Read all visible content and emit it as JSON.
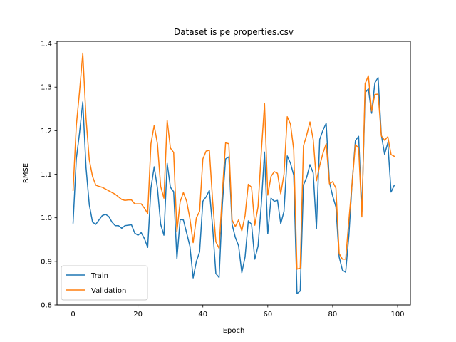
{
  "chart_data": {
    "type": "line",
    "title": "Dataset is pe properties.csv",
    "xlabel": "Epoch",
    "ylabel": "RMSE",
    "xlim": [
      -4.95,
      103.95
    ],
    "ylim": [
      0.8,
      1.405
    ],
    "xticks": [
      0,
      20,
      40,
      60,
      80,
      100
    ],
    "xtick_labels": [
      "0",
      "20",
      "40",
      "60",
      "80",
      "100"
    ],
    "yticks": [
      0.8,
      0.9,
      1.0,
      1.1,
      1.2,
      1.3,
      1.4
    ],
    "ytick_labels": [
      "0.8",
      "0.9",
      "1.0",
      "1.1",
      "1.2",
      "1.3",
      "1.4"
    ],
    "grid": false,
    "legend_position": "lower-left",
    "series": [
      {
        "name": "Train",
        "color": "#1f77b4",
        "x": [
          0,
          1,
          2,
          3,
          4,
          5,
          6,
          7,
          8,
          9,
          10,
          11,
          12,
          13,
          14,
          15,
          16,
          17,
          18,
          19,
          20,
          21,
          22,
          23,
          24,
          25,
          26,
          27,
          28,
          29,
          30,
          31,
          32,
          33,
          34,
          35,
          36,
          37,
          38,
          39,
          40,
          41,
          42,
          43,
          44,
          45,
          46,
          47,
          48,
          49,
          50,
          51,
          52,
          53,
          54,
          55,
          56,
          57,
          58,
          59,
          60,
          61,
          62,
          63,
          64,
          65,
          66,
          67,
          68,
          69,
          70,
          71,
          72,
          73,
          74,
          75,
          76,
          77,
          78,
          79,
          80,
          81,
          82,
          83,
          84,
          85,
          86,
          87,
          88,
          89,
          90,
          91,
          92,
          93,
          94,
          95,
          96,
          97,
          98,
          99
        ],
        "values": [
          0.988,
          1.135,
          1.195,
          1.266,
          1.115,
          1.03,
          0.99,
          0.985,
          0.995,
          1.005,
          1.008,
          1.003,
          0.99,
          0.982,
          0.982,
          0.976,
          0.982,
          0.983,
          0.984,
          0.965,
          0.96,
          0.966,
          0.952,
          0.932,
          1.068,
          1.117,
          1.068,
          0.985,
          0.96,
          1.125,
          1.07,
          1.06,
          0.906,
          0.996,
          0.995,
          0.965,
          0.935,
          0.862,
          0.9,
          0.922,
          1.038,
          1.048,
          1.063,
          0.98,
          0.872,
          0.863,
          1.03,
          1.135,
          1.14,
          0.985,
          0.955,
          0.936,
          0.874,
          0.91,
          0.993,
          0.985,
          0.905,
          0.935,
          1.03,
          1.151,
          0.963,
          1.045,
          1.038,
          1.04,
          0.986,
          1.015,
          1.142,
          1.125,
          1.098,
          0.826,
          0.832,
          1.075,
          1.093,
          1.122,
          1.103,
          0.975,
          1.18,
          1.201,
          1.217,
          1.082,
          1.05,
          1.025,
          0.91,
          0.88,
          0.875,
          0.96,
          1.082,
          1.177,
          1.187,
          1.013,
          1.287,
          1.296,
          1.24,
          1.31,
          1.322,
          1.19,
          1.146,
          1.172,
          1.059,
          1.075
        ]
      },
      {
        "name": "Validation",
        "color": "#ff7f0e",
        "x": [
          0,
          1,
          2,
          3,
          4,
          5,
          6,
          7,
          8,
          9,
          10,
          11,
          12,
          13,
          14,
          15,
          16,
          17,
          18,
          19,
          20,
          21,
          22,
          23,
          24,
          25,
          26,
          27,
          28,
          29,
          30,
          31,
          32,
          33,
          34,
          35,
          36,
          37,
          38,
          39,
          40,
          41,
          42,
          43,
          44,
          45,
          46,
          47,
          48,
          49,
          50,
          51,
          52,
          53,
          54,
          55,
          56,
          57,
          58,
          59,
          60,
          61,
          62,
          63,
          64,
          65,
          66,
          67,
          68,
          69,
          70,
          71,
          72,
          73,
          74,
          75,
          76,
          77,
          78,
          79,
          80,
          81,
          82,
          83,
          84,
          85,
          86,
          87,
          88,
          89,
          90,
          91,
          92,
          93,
          94,
          95,
          96,
          97,
          98,
          99
        ],
        "values": [
          1.063,
          1.212,
          1.29,
          1.378,
          1.228,
          1.133,
          1.095,
          1.075,
          1.072,
          1.07,
          1.066,
          1.062,
          1.058,
          1.054,
          1.048,
          1.042,
          1.04,
          1.041,
          1.041,
          1.032,
          1.032,
          1.032,
          1.022,
          1.01,
          1.17,
          1.212,
          1.17,
          1.072,
          1.045,
          1.224,
          1.16,
          1.15,
          0.968,
          1.037,
          1.058,
          1.038,
          0.998,
          0.943,
          1.0,
          1.015,
          1.135,
          1.153,
          1.155,
          1.04,
          0.945,
          0.93,
          1.058,
          1.172,
          1.17,
          0.995,
          0.98,
          0.995,
          0.97,
          1.005,
          1.077,
          1.07,
          0.983,
          1.025,
          1.15,
          1.262,
          1.052,
          1.095,
          1.106,
          1.102,
          1.055,
          1.1,
          1.232,
          1.215,
          1.156,
          0.882,
          0.885,
          1.165,
          1.19,
          1.22,
          1.18,
          1.085,
          1.12,
          1.148,
          1.17,
          1.078,
          1.083,
          1.068,
          0.918,
          0.905,
          0.905,
          0.995,
          1.08,
          1.168,
          1.16,
          1.002,
          1.308,
          1.326,
          1.245,
          1.283,
          1.284,
          1.188,
          1.178,
          1.186,
          1.145,
          1.141
        ]
      }
    ]
  }
}
